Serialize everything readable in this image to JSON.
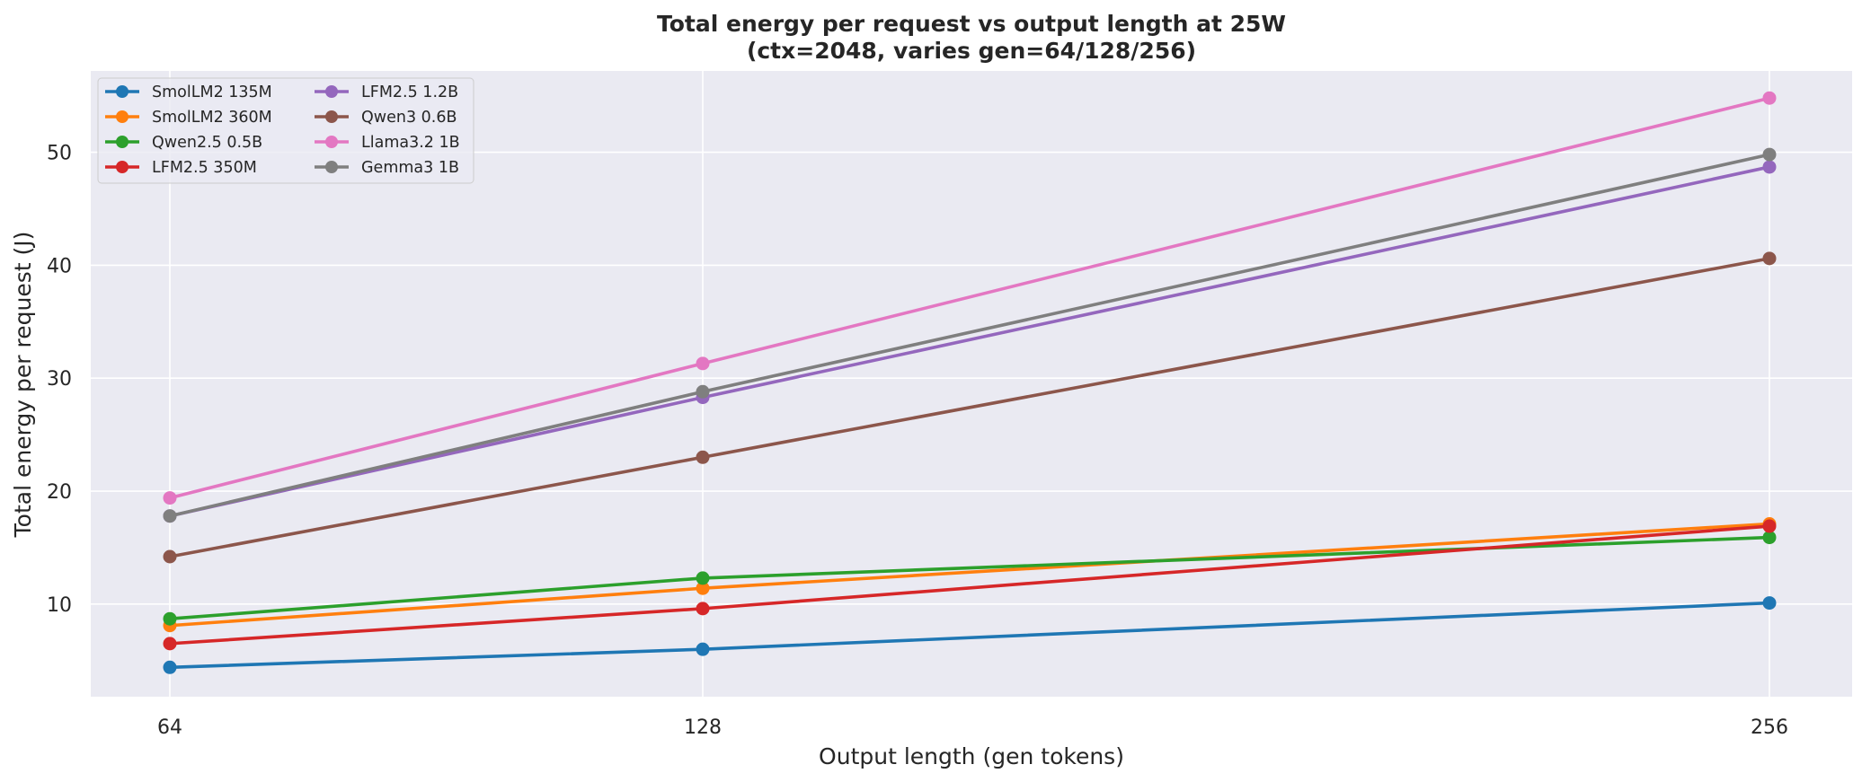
{
  "chart_data": {
    "type": "line",
    "title": "Total energy per request vs output length at 25W",
    "subtitle": "(ctx=2048, varies gen=64/128/256)",
    "xlabel": "Output length (gen tokens)",
    "ylabel": "Total energy per request (J)",
    "x": [
      64,
      128,
      256
    ],
    "x_tick_labels": [
      "64",
      "128",
      "256"
    ],
    "y_ticks": [
      10,
      20,
      30,
      40,
      50
    ],
    "ylim": [
      1.8,
      57.2
    ],
    "grid": true,
    "legend_placement": "top-left",
    "legend_columns": 2,
    "series": [
      {
        "name": "SmolLM2 135M",
        "color": "#1f77b4",
        "values": [
          4.4,
          6.0,
          10.1
        ]
      },
      {
        "name": "SmolLM2 360M",
        "color": "#ff7f0e",
        "values": [
          8.1,
          11.4,
          17.1
        ]
      },
      {
        "name": "Qwen2.5 0.5B",
        "color": "#2ca02c",
        "values": [
          8.7,
          12.3,
          15.9
        ]
      },
      {
        "name": "LFM2.5 350M",
        "color": "#d62728",
        "values": [
          6.5,
          9.6,
          16.9
        ]
      },
      {
        "name": "LFM2.5 1.2B",
        "color": "#9467bd",
        "values": [
          17.8,
          28.3,
          48.7
        ]
      },
      {
        "name": "Qwen3 0.6B",
        "color": "#8c564b",
        "values": [
          14.2,
          23.0,
          40.6
        ]
      },
      {
        "name": "Llama3.2 1B",
        "color": "#e377c2",
        "values": [
          19.4,
          31.3,
          54.8
        ]
      },
      {
        "name": "Gemma3 1B",
        "color": "#7f7f7f",
        "values": [
          17.8,
          28.8,
          49.8
        ]
      }
    ]
  }
}
